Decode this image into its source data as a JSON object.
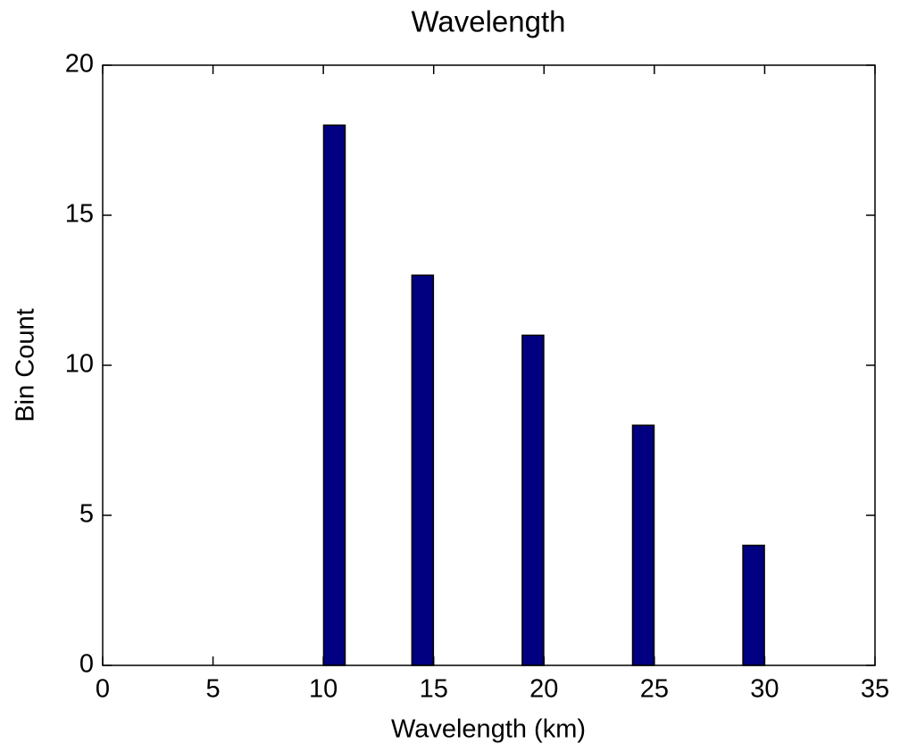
{
  "chart_data": {
    "type": "bar",
    "title": "Wavelength",
    "x_label": "Wavelength (km)",
    "y_label": "Bin Count",
    "x": [
      10.5,
      14.5,
      19.5,
      24.5,
      29.5
    ],
    "values": [
      18,
      13,
      11,
      8,
      4
    ],
    "color": "#000080",
    "xlim": [
      0,
      35
    ],
    "xticks": [
      0,
      5,
      10,
      15,
      20,
      25,
      30,
      35
    ],
    "ylim": [
      0,
      20
    ],
    "yticks": [
      0,
      5,
      10,
      15,
      20
    ],
    "grid": false
  }
}
